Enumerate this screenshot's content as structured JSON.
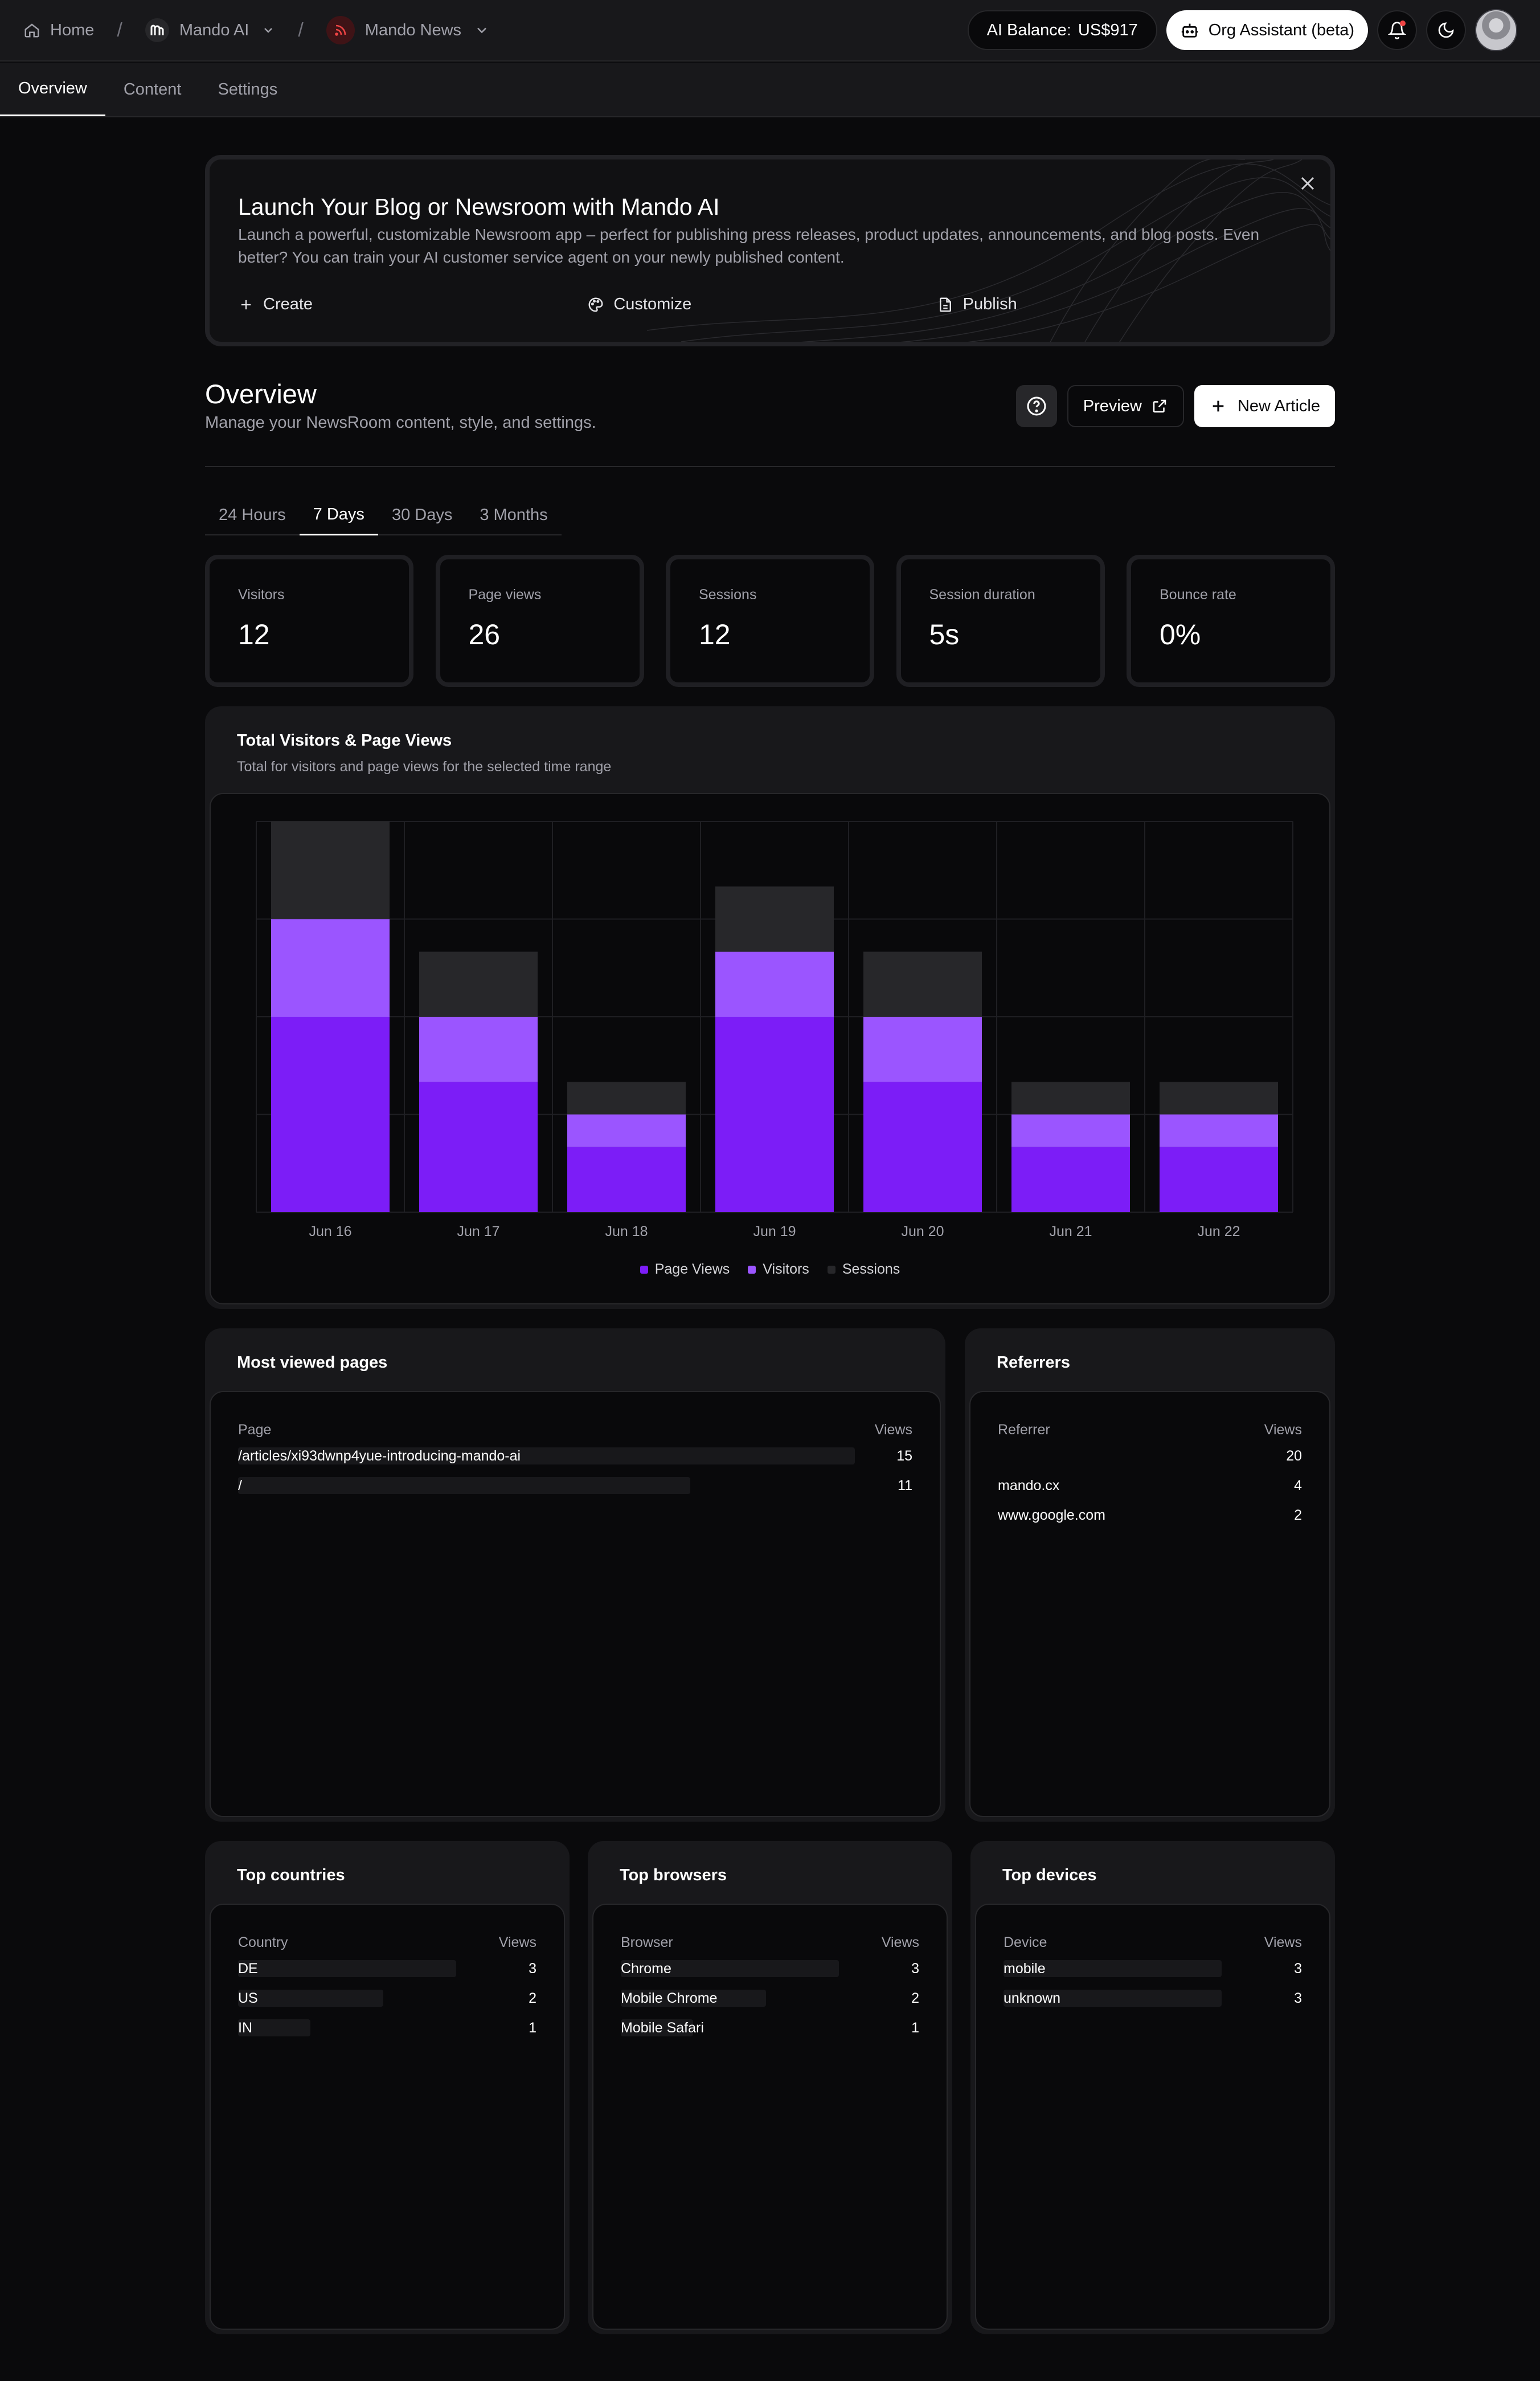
{
  "header": {
    "breadcrumbs": [
      "Home",
      "Mando AI",
      "Mando News"
    ],
    "ai_balance_label": "AI Balance:",
    "ai_balance_value": "US$917",
    "assistant_label": "Org Assistant (beta)"
  },
  "nav": {
    "tabs": [
      {
        "label": "Overview",
        "active": true
      },
      {
        "label": "Content",
        "active": false
      },
      {
        "label": "Settings",
        "active": false
      }
    ]
  },
  "banner": {
    "title": "Launch Your Blog or Newsroom with Mando AI",
    "text": "Launch a powerful, customizable Newsroom app – perfect for publishing press releases, product updates, announcements, and blog posts. Even better? You can train your AI customer service agent on your newly published content.",
    "actions": [
      "Create",
      "Customize",
      "Publish"
    ]
  },
  "overview": {
    "title": "Overview",
    "subtitle": "Manage your NewsRoom content, style, and settings.",
    "preview_label": "Preview",
    "new_article_label": "New Article"
  },
  "ranges": [
    {
      "label": "24 Hours",
      "active": false
    },
    {
      "label": "7 Days",
      "active": true
    },
    {
      "label": "30 Days",
      "active": false
    },
    {
      "label": "3 Months",
      "active": false
    }
  ],
  "stats": [
    {
      "label": "Visitors",
      "value": "12"
    },
    {
      "label": "Page views",
      "value": "26"
    },
    {
      "label": "Sessions",
      "value": "12"
    },
    {
      "label": "Session duration",
      "value": "5s"
    },
    {
      "label": "Bounce rate",
      "value": "0%"
    }
  ],
  "chart_card": {
    "title": "Total Visitors & Page Views",
    "subtitle": "Total for visitors and page views for the selected time range"
  },
  "chart_data": {
    "type": "bar",
    "stacked": true,
    "categories": [
      "Jun 16",
      "Jun 17",
      "Jun 18",
      "Jun 19",
      "Jun 20",
      "Jun 21",
      "Jun 22"
    ],
    "series": [
      {
        "name": "Page Views",
        "color": "#7c1df7",
        "values": [
          6,
          4,
          2,
          6,
          4,
          2,
          2
        ]
      },
      {
        "name": "Visitors",
        "color": "#9b55ff",
        "values": [
          3,
          2,
          1,
          2,
          2,
          1,
          1
        ]
      },
      {
        "name": "Sessions",
        "color": "#27272a",
        "values": [
          3,
          2,
          1,
          2,
          2,
          1,
          1
        ]
      }
    ],
    "ylim": [
      0,
      12
    ],
    "grid": true,
    "legend": "bottom-center"
  },
  "most_viewed": {
    "title": "Most viewed pages",
    "col_key": "Page",
    "col_val": "Views",
    "rows": [
      {
        "key": "/articles/xi93dwnp4yue-introducing-mando-ai",
        "value": 15,
        "share": 1.0
      },
      {
        "key": "/",
        "value": 11,
        "share": 0.733
      }
    ]
  },
  "referrers": {
    "title": "Referrers",
    "col_key": "Referrer",
    "col_val": "Views",
    "rows": [
      {
        "key": "",
        "value": 20
      },
      {
        "key": "mando.cx",
        "value": 4
      },
      {
        "key": "www.google.com",
        "value": 2
      }
    ]
  },
  "countries": {
    "title": "Top countries",
    "col_key": "Country",
    "col_val": "Views",
    "rows": [
      {
        "key": "DE",
        "value": 3,
        "share": 1.0
      },
      {
        "key": "US",
        "value": 2,
        "share": 0.667
      },
      {
        "key": "IN",
        "value": 1,
        "share": 0.333
      }
    ]
  },
  "browsers": {
    "title": "Top browsers",
    "col_key": "Browser",
    "col_val": "Views",
    "rows": [
      {
        "key": "Chrome",
        "value": 3,
        "share": 1.0
      },
      {
        "key": "Mobile Chrome",
        "value": 2,
        "share": 0.667
      },
      {
        "key": "Mobile Safari",
        "value": 1,
        "share": 0.333
      }
    ]
  },
  "devices": {
    "title": "Top devices",
    "col_key": "Device",
    "col_val": "Views",
    "rows": [
      {
        "key": "mobile",
        "value": 3,
        "share": 1.0
      },
      {
        "key": "unknown",
        "value": 3,
        "share": 1.0
      }
    ]
  }
}
